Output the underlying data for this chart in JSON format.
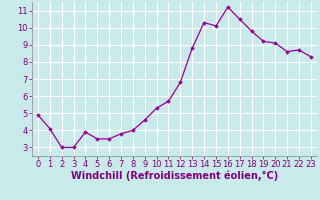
{
  "x": [
    0,
    1,
    2,
    3,
    4,
    5,
    6,
    7,
    8,
    9,
    10,
    11,
    12,
    13,
    14,
    15,
    16,
    17,
    18,
    19,
    20,
    21,
    22,
    23
  ],
  "y": [
    4.9,
    4.1,
    3.0,
    3.0,
    3.9,
    3.5,
    3.5,
    3.8,
    4.0,
    4.6,
    5.3,
    5.7,
    6.8,
    8.8,
    10.3,
    10.1,
    11.2,
    10.5,
    9.8,
    9.2,
    9.1,
    8.6,
    8.7,
    8.3
  ],
  "line_color": "#990099",
  "marker": "D",
  "marker_size": 1.8,
  "bg_color": "#c8eaea",
  "grid_color": "#ffffff",
  "xlabel": "Windchill (Refroidissement éolien,°C)",
  "xlabel_color": "#800080",
  "xlabel_fontsize": 7.0,
  "tick_color": "#800080",
  "tick_fontsize": 6.0,
  "ylim": [
    2.5,
    11.5
  ],
  "xlim": [
    -0.5,
    23.5
  ],
  "yticks": [
    3,
    4,
    5,
    6,
    7,
    8,
    9,
    10,
    11
  ],
  "xticks": [
    0,
    1,
    2,
    3,
    4,
    5,
    6,
    7,
    8,
    9,
    10,
    11,
    12,
    13,
    14,
    15,
    16,
    17,
    18,
    19,
    20,
    21,
    22,
    23
  ]
}
